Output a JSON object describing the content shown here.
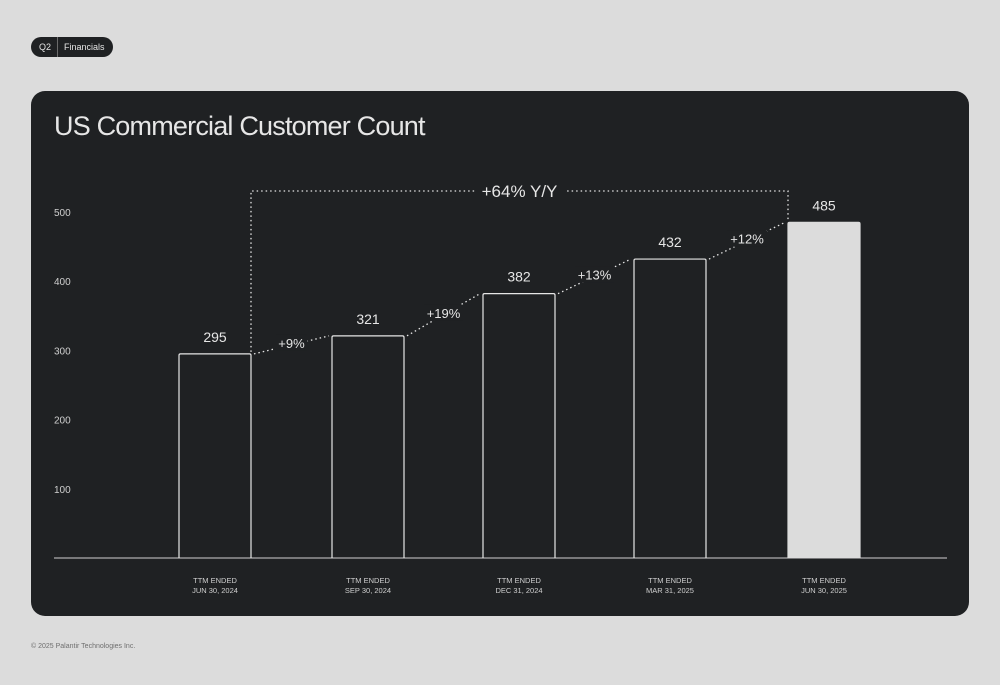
{
  "header": {
    "quarter": "Q2",
    "section": "Financials"
  },
  "footer": {
    "copyright": "© 2025 Palantir Technologies Inc."
  },
  "chart_data": {
    "type": "bar",
    "title": "US Commercial Customer Count",
    "categories": [
      [
        "TTM ENDED",
        "JUN 30, 2024"
      ],
      [
        "TTM ENDED",
        "SEP 30, 2024"
      ],
      [
        "TTM ENDED",
        "DEC 31, 2024"
      ],
      [
        "TTM ENDED",
        "MAR 31, 2025"
      ],
      [
        "TTM ENDED",
        "JUN 30, 2025"
      ]
    ],
    "values": [
      295,
      321,
      382,
      432,
      485
    ],
    "value_labels": [
      "295",
      "321",
      "382",
      "432",
      "485"
    ],
    "growth_labels": [
      "+9%",
      "+19%",
      "+13%",
      "+12%"
    ],
    "yoy_label": "+64% Y/Y",
    "yticks": [
      100,
      200,
      300,
      400,
      500
    ],
    "ylim": [
      0,
      500
    ],
    "highlight_index": 4,
    "colors": {
      "background": "#1f2123",
      "foreground": "#e6e6e6",
      "highlight_fill": "#dcdcdc"
    }
  }
}
